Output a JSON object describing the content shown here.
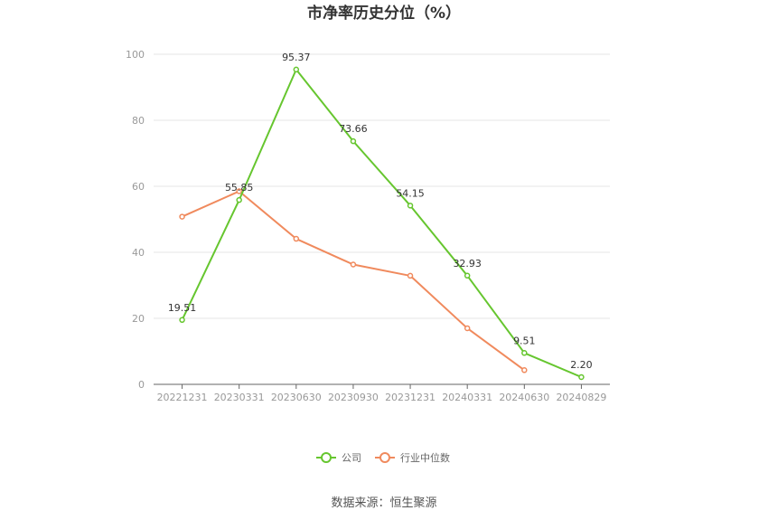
{
  "chart_data": {
    "type": "line",
    "title": "市净率历史分位（%）",
    "categories": [
      "20221231",
      "20230331",
      "20230630",
      "20230930",
      "20231231",
      "20240331",
      "20240630",
      "20240829"
    ],
    "ylim": [
      0,
      100
    ],
    "yticks": [
      0,
      20,
      40,
      60,
      80,
      100
    ],
    "grid": true,
    "legend_position": "bottom",
    "series": [
      {
        "name": "公司",
        "color": "#66c62f",
        "values": [
          19.51,
          55.85,
          95.37,
          73.66,
          54.15,
          32.93,
          9.51,
          2.2
        ],
        "labels": [
          "19.51",
          "55.85",
          "95.37",
          "73.66",
          "54.15",
          "32.93",
          "9.51",
          "2.20"
        ]
      },
      {
        "name": "行业中位数",
        "color": "#f08a5d",
        "values": [
          50.8,
          58.5,
          44.1,
          36.3,
          32.9,
          17.0,
          4.3,
          null
        ]
      }
    ],
    "source": "数据来源：恒生聚源"
  }
}
